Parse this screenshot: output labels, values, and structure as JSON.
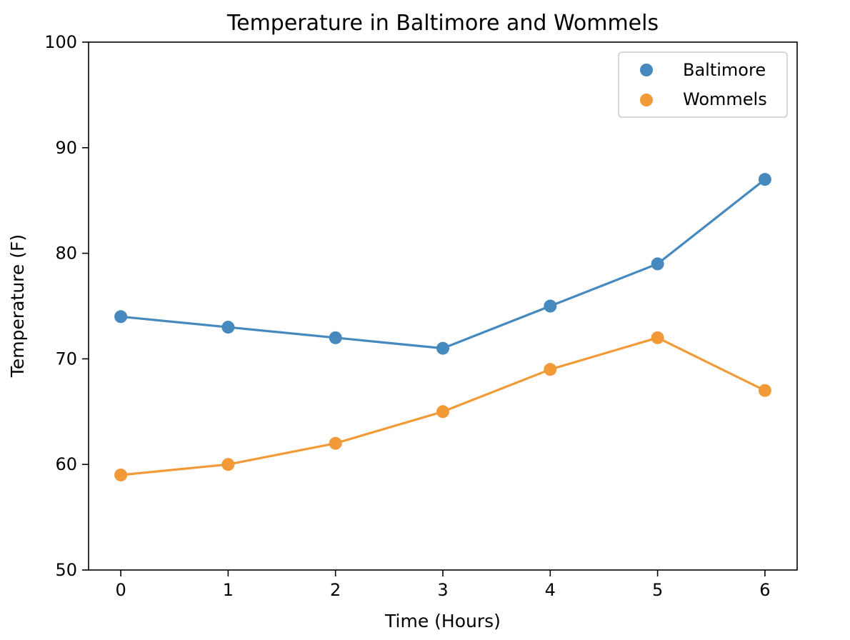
{
  "chart_data": {
    "type": "line",
    "title": "Temperature in Baltimore and Wommels",
    "xlabel": "Time (Hours)",
    "ylabel": "Temperature (F)",
    "x": [
      0,
      1,
      2,
      3,
      4,
      5,
      6
    ],
    "xticks": [
      "0",
      "1",
      "2",
      "3",
      "4",
      "5",
      "6"
    ],
    "yticks": [
      "50",
      "60",
      "70",
      "80",
      "90",
      "100"
    ],
    "ylim": [
      50,
      100
    ],
    "xlim": [
      -0.3,
      6.3
    ],
    "grid": false,
    "legend_position": "top-right",
    "markers": true,
    "series": [
      {
        "name": "Baltimore",
        "color": "#4589be",
        "values": [
          74,
          73,
          72,
          71,
          75,
          79,
          87
        ]
      },
      {
        "name": "Wommels",
        "color": "#f29a38",
        "values": [
          59,
          60,
          62,
          65,
          69,
          72,
          67
        ]
      }
    ]
  }
}
